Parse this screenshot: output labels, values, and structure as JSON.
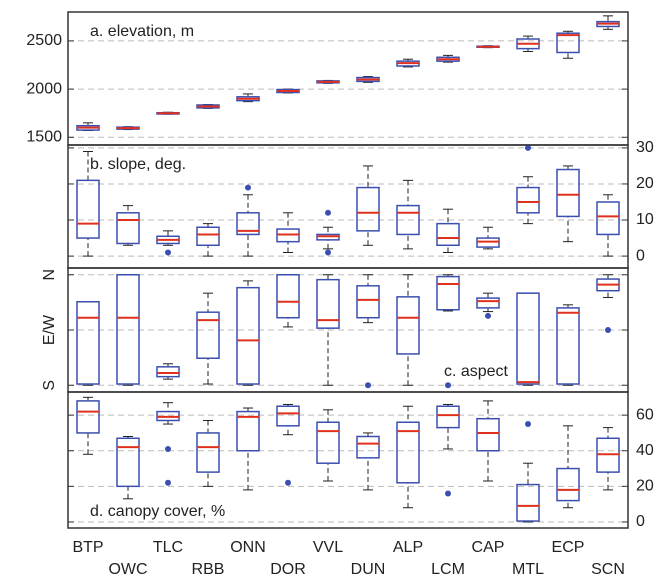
{
  "chart_data": [
    {
      "type": "box",
      "label": "a. elevation, m",
      "label_corner": "top-left",
      "axis_side": "left",
      "ylim": [
        1420,
        2800
      ],
      "yticks": [
        1500,
        2000,
        2500
      ],
      "grid": true,
      "box_color": "#3b4fb0",
      "median_color": "#e0301e",
      "boxes": [
        {
          "whislo": 1570,
          "q1": 1575,
          "med": 1600,
          "q3": 1620,
          "whishi": 1650,
          "fliers": []
        },
        {
          "whislo": 1580,
          "q1": 1585,
          "med": 1595,
          "q3": 1605,
          "whishi": 1610,
          "fliers": []
        },
        {
          "whislo": 1740,
          "q1": 1742,
          "med": 1750,
          "q3": 1755,
          "whishi": 1760,
          "fliers": []
        },
        {
          "whislo": 1800,
          "q1": 1805,
          "med": 1820,
          "q3": 1835,
          "whishi": 1840,
          "fliers": []
        },
        {
          "whislo": 1870,
          "q1": 1880,
          "med": 1900,
          "q3": 1920,
          "whishi": 1950,
          "fliers": []
        },
        {
          "whislo": 1960,
          "q1": 1965,
          "med": 1980,
          "q3": 1995,
          "whishi": 2000,
          "fliers": []
        },
        {
          "whislo": 2060,
          "q1": 2065,
          "med": 2075,
          "q3": 2085,
          "whishi": 2090,
          "fliers": []
        },
        {
          "whislo": 2070,
          "q1": 2080,
          "med": 2100,
          "q3": 2120,
          "whishi": 2130,
          "fliers": []
        },
        {
          "whislo": 2230,
          "q1": 2240,
          "med": 2270,
          "q3": 2290,
          "whishi": 2310,
          "fliers": []
        },
        {
          "whislo": 2280,
          "q1": 2290,
          "med": 2310,
          "q3": 2330,
          "whishi": 2350,
          "fliers": []
        },
        {
          "whislo": 2430,
          "q1": 2435,
          "med": 2440,
          "q3": 2445,
          "whishi": 2450,
          "fliers": []
        },
        {
          "whislo": 2390,
          "q1": 2420,
          "med": 2470,
          "q3": 2520,
          "whishi": 2550,
          "fliers": []
        },
        {
          "whislo": 2320,
          "q1": 2380,
          "med": 2560,
          "q3": 2580,
          "whishi": 2600,
          "fliers": []
        },
        {
          "whislo": 2620,
          "q1": 2650,
          "med": 2680,
          "q3": 2700,
          "whishi": 2760,
          "fliers": []
        }
      ]
    },
    {
      "type": "box",
      "label": "b. slope, deg.",
      "label_corner": "top-left",
      "axis_side": "right",
      "ylim": [
        -3.3,
        30.8
      ],
      "yticks": [
        0,
        10,
        20,
        30
      ],
      "grid": true,
      "box_color": "#3b4fb0",
      "median_color": "#e0301e",
      "boxes": [
        {
          "whislo": 0,
          "q1": 5,
          "med": 9,
          "q3": 21,
          "whishi": 29,
          "fliers": []
        },
        {
          "whislo": 3,
          "q1": 3.5,
          "med": 10,
          "q3": 12,
          "whishi": 14,
          "fliers": []
        },
        {
          "whislo": 3,
          "q1": 3.5,
          "med": 4.5,
          "q3": 5.5,
          "whishi": 7,
          "fliers": [
            1
          ]
        },
        {
          "whislo": 0,
          "q1": 3,
          "med": 6,
          "q3": 8,
          "whishi": 9,
          "fliers": []
        },
        {
          "whislo": 0,
          "q1": 6,
          "med": 7,
          "q3": 12,
          "whishi": 17,
          "fliers": [
            19
          ]
        },
        {
          "whislo": 1,
          "q1": 4,
          "med": 6,
          "q3": 7.5,
          "whishi": 12,
          "fliers": []
        },
        {
          "whislo": 2,
          "q1": 4.5,
          "med": 5.5,
          "q3": 6,
          "whishi": 8,
          "fliers": [
            12,
            1
          ]
        },
        {
          "whislo": 3,
          "q1": 7,
          "med": 12,
          "q3": 19,
          "whishi": 25,
          "fliers": []
        },
        {
          "whislo": 2,
          "q1": 6,
          "med": 12,
          "q3": 14,
          "whishi": 21,
          "fliers": []
        },
        {
          "whislo": 1,
          "q1": 3,
          "med": 5,
          "q3": 9,
          "whishi": 13,
          "fliers": []
        },
        {
          "whislo": 2,
          "q1": 2.5,
          "med": 4,
          "q3": 5,
          "whishi": 8,
          "fliers": []
        },
        {
          "whislo": 9,
          "q1": 12,
          "med": 15,
          "q3": 19,
          "whishi": 22,
          "fliers": [
            30
          ]
        },
        {
          "whislo": 4,
          "q1": 11,
          "med": 17,
          "q3": 24,
          "whishi": 25,
          "fliers": []
        },
        {
          "whislo": 0,
          "q1": 6,
          "med": 11,
          "q3": 15,
          "whishi": 17,
          "fliers": []
        }
      ]
    },
    {
      "type": "box",
      "label": "c. aspect",
      "label_corner": "bottom-right",
      "axis_side": "left",
      "ylim": [
        -11,
        191
      ],
      "yticks": [
        {
          "value": 0,
          "label": "S"
        },
        {
          "value": 90,
          "label": "E/W"
        },
        {
          "value": 180,
          "label": "N"
        }
      ],
      "grid": true,
      "box_color": "#3b4fb0",
      "median_color": "#e0301e",
      "boxes": [
        {
          "whislo": 0,
          "q1": 2,
          "med": 110,
          "q3": 136,
          "whishi": 136,
          "fliers": []
        },
        {
          "whislo": 0,
          "q1": 2,
          "med": 110,
          "q3": 180,
          "whishi": 180,
          "fliers": []
        },
        {
          "whislo": 10,
          "q1": 14,
          "med": 20,
          "q3": 30,
          "whishi": 35,
          "fliers": []
        },
        {
          "whislo": 2,
          "q1": 44,
          "med": 106,
          "q3": 119,
          "whishi": 150,
          "fliers": []
        },
        {
          "whislo": 0,
          "q1": 2,
          "med": 73,
          "q3": 159,
          "whishi": 170,
          "fliers": []
        },
        {
          "whislo": 95,
          "q1": 110,
          "med": 136,
          "q3": 180,
          "whishi": 180,
          "fliers": []
        },
        {
          "whislo": 0,
          "q1": 93,
          "med": 106,
          "q3": 172,
          "whishi": 180,
          "fliers": []
        },
        {
          "whislo": 102,
          "q1": 110,
          "med": 139,
          "q3": 162,
          "whishi": 180,
          "fliers": [
            0
          ]
        },
        {
          "whislo": 0,
          "q1": 51,
          "med": 110,
          "q3": 144,
          "whishi": 180,
          "fliers": []
        },
        {
          "whislo": 121,
          "q1": 123,
          "med": 165,
          "q3": 177,
          "whishi": 180,
          "fliers": [
            0
          ]
        },
        {
          "whislo": 120,
          "q1": 126,
          "med": 137,
          "q3": 142,
          "whishi": 150,
          "fliers": [
            113
          ]
        },
        {
          "whislo": 0,
          "q1": 2,
          "med": 5,
          "q3": 150,
          "whishi": 150,
          "fliers": []
        },
        {
          "whislo": 0,
          "q1": 2,
          "med": 118,
          "q3": 126,
          "whishi": 131,
          "fliers": []
        },
        {
          "whislo": 143,
          "q1": 154,
          "med": 164,
          "q3": 173,
          "whishi": 180,
          "fliers": [
            90
          ]
        }
      ]
    },
    {
      "type": "box",
      "label": "d. canopy cover, %",
      "label_corner": "bottom-left",
      "axis_side": "right",
      "ylim": [
        -3.4,
        73
      ],
      "yticks": [
        0,
        20,
        40,
        60
      ],
      "grid": true,
      "box_color": "#3b4fb0",
      "median_color": "#e0301e",
      "categories": [
        "BTP",
        "OWC",
        "TLC",
        "RBB",
        "ONN",
        "DOR",
        "VVL",
        "DUN",
        "ALP",
        "LCM",
        "CAP",
        "MTL",
        "ECP",
        "SCN"
      ],
      "boxes": [
        {
          "whislo": 38,
          "q1": 50,
          "med": 62,
          "q3": 68,
          "whishi": 70,
          "fliers": []
        },
        {
          "whislo": 13,
          "q1": 20,
          "med": 42,
          "q3": 47,
          "whishi": 48,
          "fliers": []
        },
        {
          "whislo": 55,
          "q1": 57,
          "med": 59,
          "q3": 62,
          "whishi": 67,
          "fliers": [
            41,
            22
          ]
        },
        {
          "whislo": 20,
          "q1": 28,
          "med": 42,
          "q3": 50,
          "whishi": 57,
          "fliers": []
        },
        {
          "whislo": 18,
          "q1": 40,
          "med": 59,
          "q3": 62,
          "whishi": 64,
          "fliers": []
        },
        {
          "whislo": 49,
          "q1": 54,
          "med": 61,
          "q3": 65,
          "whishi": 66,
          "fliers": [
            22
          ]
        },
        {
          "whislo": 23,
          "q1": 33,
          "med": 51,
          "q3": 56,
          "whishi": 63,
          "fliers": []
        },
        {
          "whislo": 18,
          "q1": 36,
          "med": 44,
          "q3": 48,
          "whishi": 50,
          "fliers": []
        },
        {
          "whislo": 8,
          "q1": 22,
          "med": 51,
          "q3": 56,
          "whishi": 65,
          "fliers": []
        },
        {
          "whislo": 41,
          "q1": 53,
          "med": 60,
          "q3": 65,
          "whishi": 66,
          "fliers": [
            16
          ]
        },
        {
          "whislo": 23,
          "q1": 40,
          "med": 50,
          "q3": 58,
          "whishi": 68,
          "fliers": []
        },
        {
          "whislo": 0,
          "q1": 0.5,
          "med": 9,
          "q3": 21,
          "whishi": 33,
          "fliers": [
            55
          ]
        },
        {
          "whislo": 8,
          "q1": 12,
          "med": 18,
          "q3": 30,
          "whishi": 54,
          "fliers": []
        },
        {
          "whislo": 18,
          "q1": 28,
          "med": 38,
          "q3": 47,
          "whishi": 53,
          "fliers": []
        }
      ]
    }
  ]
}
